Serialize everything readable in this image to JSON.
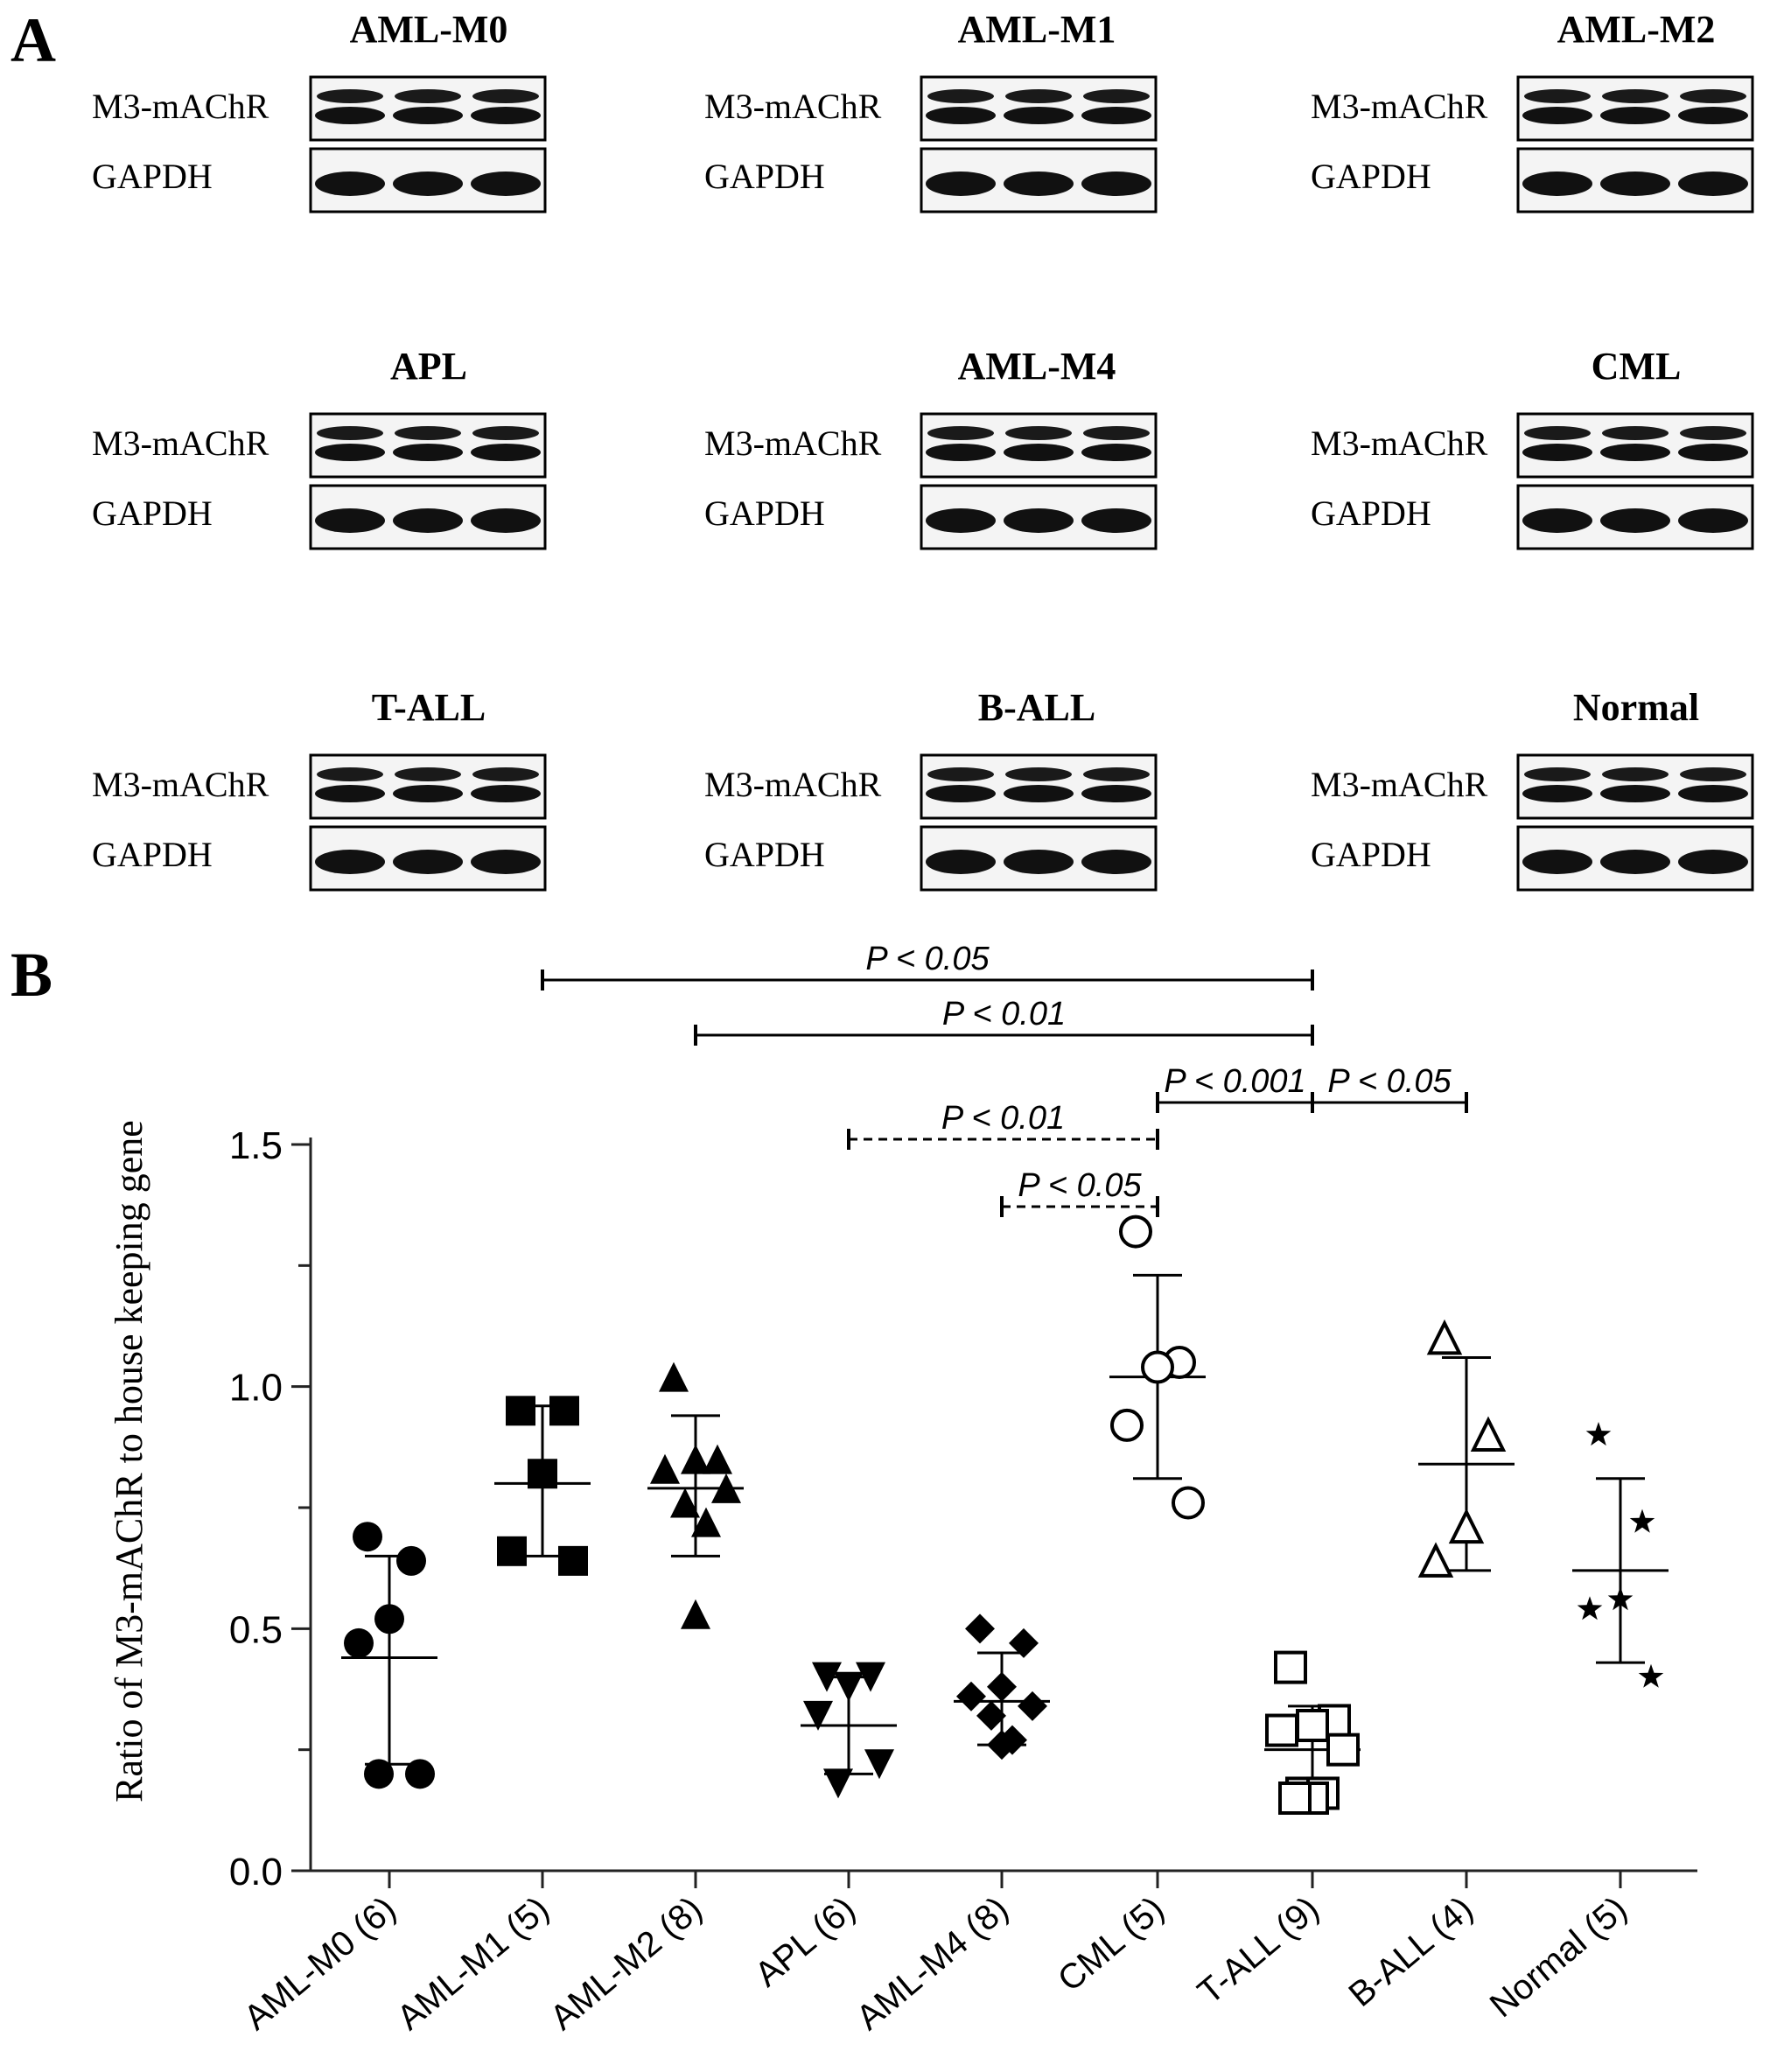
{
  "panel_labels": {
    "a": "A",
    "b": "B"
  },
  "blot_row_labels": {
    "target": "M3-mAChR",
    "control": "GAPDH"
  },
  "blots": [
    {
      "title": "AML-M0"
    },
    {
      "title": "AML-M1"
    },
    {
      "title": "AML-M2"
    },
    {
      "title": "APL"
    },
    {
      "title": "AML-M4"
    },
    {
      "title": "CML"
    },
    {
      "title": "T-ALL"
    },
    {
      "title": "B-ALL"
    },
    {
      "title": "Normal"
    }
  ],
  "chart_data": {
    "type": "scatter",
    "title": "",
    "xlabel": "",
    "ylabel": "Ratio of M3-mAChR to house keeping gene",
    "ylim": [
      0,
      1.5
    ],
    "yticks": [
      "0.0",
      "0.5",
      "1.0",
      "1.5"
    ],
    "grid": false,
    "categories": [
      "AML-M0 (6)",
      "AML-M1 (5)",
      "AML-M2 (8)",
      "APL (6)",
      "AML-M4 (8)",
      "CML (5)",
      "T-ALL (9)",
      "B-ALL (4)",
      "Normal (5)"
    ],
    "groups": [
      {
        "marker": "circle-filled",
        "points": [
          0.69,
          0.64,
          0.52,
          0.47,
          0.2,
          0.2
        ],
        "mean": 0.44,
        "sd_low": 0.22,
        "sd_high": 0.65
      },
      {
        "marker": "square-filled",
        "points": [
          0.95,
          0.95,
          0.82,
          0.66,
          0.64
        ],
        "mean": 0.8,
        "sd_low": 0.65,
        "sd_high": 0.96
      },
      {
        "marker": "triangle-filled",
        "points": [
          1.02,
          0.85,
          0.85,
          0.83,
          0.79,
          0.76,
          0.72,
          0.53
        ],
        "mean": 0.79,
        "sd_low": 0.65,
        "sd_high": 0.94
      },
      {
        "marker": "triangle-down-filled",
        "points": [
          0.4,
          0.4,
          0.38,
          0.32,
          0.22,
          0.18
        ],
        "mean": 0.3,
        "sd_low": 0.2,
        "sd_high": 0.4
      },
      {
        "marker": "diamond-filled",
        "points": [
          0.5,
          0.47,
          0.38,
          0.36,
          0.34,
          0.32,
          0.27,
          0.26
        ],
        "mean": 0.35,
        "sd_low": 0.26,
        "sd_high": 0.45
      },
      {
        "marker": "circle-open",
        "points": [
          1.32,
          1.05,
          1.04,
          0.92,
          0.76
        ],
        "mean": 1.02,
        "sd_low": 0.81,
        "sd_high": 1.23
      },
      {
        "marker": "square-open",
        "points": [
          0.42,
          0.31,
          0.3,
          0.29,
          0.25,
          0.16,
          0.16,
          0.15,
          0.15
        ],
        "mean": 0.25,
        "sd_low": 0.16,
        "sd_high": 0.34
      },
      {
        "marker": "triangle-open",
        "points": [
          1.1,
          0.9,
          0.71,
          0.64
        ],
        "mean": 0.84,
        "sd_low": 0.62,
        "sd_high": 1.06
      },
      {
        "marker": "star-filled",
        "points": [
          0.9,
          0.72,
          0.56,
          0.54,
          0.4
        ],
        "mean": 0.62,
        "sd_low": 0.43,
        "sd_high": 0.81
      }
    ],
    "significance": [
      {
        "from": 1,
        "to": 6,
        "label": "P < 0.05",
        "style": "solid"
      },
      {
        "from": 2,
        "to": 6,
        "label": "P < 0.01",
        "style": "solid"
      },
      {
        "from": 5,
        "to": 6,
        "label": "P < 0.001",
        "style": "solid"
      },
      {
        "from": 6,
        "to": 7,
        "label": "P < 0.05",
        "style": "solid"
      },
      {
        "from": 3,
        "to": 5,
        "label": "P < 0.01",
        "style": "dashed"
      },
      {
        "from": 4,
        "to": 5,
        "label": "P < 0.05",
        "style": "dashed"
      }
    ]
  }
}
